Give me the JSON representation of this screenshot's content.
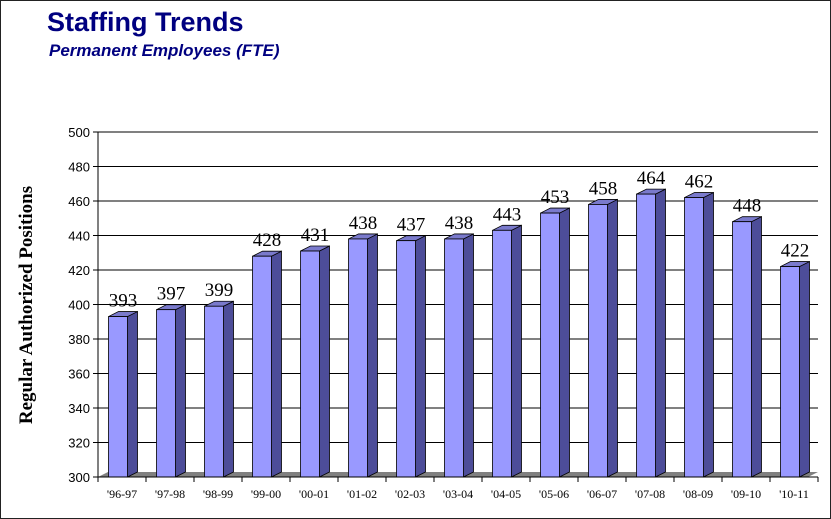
{
  "header": {
    "title": "Staffing Trends",
    "subtitle": "Permanent Employees (FTE)"
  },
  "chart_data": {
    "type": "bar",
    "title": "Staffing Trends",
    "subtitle": "Permanent Employees (FTE)",
    "xlabel": "",
    "ylabel": "Regular Authorized Positions",
    "ylim": [
      300,
      500
    ],
    "yticks": [
      300,
      320,
      340,
      360,
      380,
      400,
      420,
      440,
      460,
      480,
      500
    ],
    "categories": [
      "'96-97",
      "'97-98",
      "'98-99",
      "'99-00",
      "'00-01",
      "'01-02",
      "'02-03",
      "'03-04",
      "'04-05",
      "'05-06",
      "'06-07",
      "'07-08",
      "'08-09",
      "'09-10",
      "'10-11"
    ],
    "values": [
      393,
      397,
      399,
      428,
      431,
      438,
      437,
      438,
      443,
      453,
      458,
      464,
      462,
      448,
      422
    ],
    "data_labels": true,
    "grid": true,
    "legend": "none",
    "style": "3d",
    "bar_color": "#9999ff",
    "bar_side_color": "#4d4d99",
    "bar_top_color": "#7a7acc",
    "floor_color": "#808080"
  }
}
